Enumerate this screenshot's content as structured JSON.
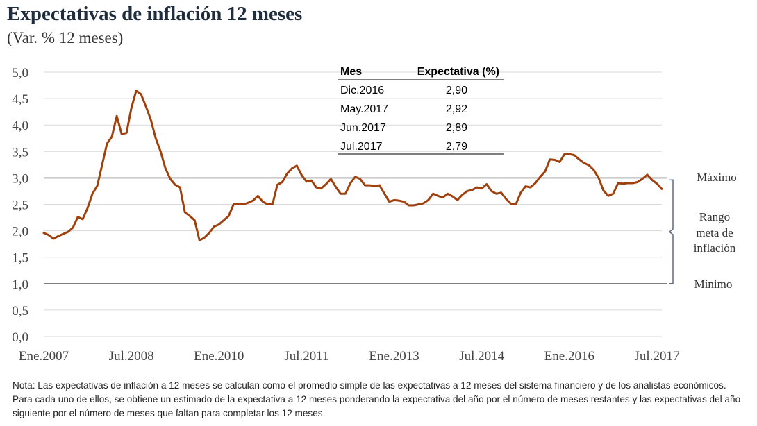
{
  "title": "Expectativas de inflación 12 meses",
  "subtitle": "(Var. % 12 meses)",
  "note": "Nota: Las expectativas de inflación a 12 meses se calculan como el promedio simple de las expectativas a 12 meses del sistema financiero y de los analistas económicos. Para cada uno de ellos, se obtiene un estimado de la expectativa a 12 meses ponderando la expectativa del año por el número de meses restantes y las expectativas del año siguiente por el número de meses que faltan para completar los 12 meses.",
  "colors": {
    "series": "#a0410d",
    "reference": "#7f7f7f",
    "grid": "#d9d9d9"
  },
  "table": {
    "headers": [
      "Mes",
      "Expectativa (%)"
    ],
    "rows": [
      [
        "Dic.2016",
        "2,90"
      ],
      [
        "May.2017",
        "2,92"
      ],
      [
        "Jun.2017",
        "2,89"
      ],
      [
        "Jul.2017",
        "2,79"
      ]
    ]
  },
  "target_range": {
    "max_label": "Máximo",
    "range_label": [
      "Rango",
      "meta de",
      "inflación"
    ],
    "min_label": "Mínimo",
    "max": 3.0,
    "min": 1.0
  },
  "chart_data": {
    "type": "line",
    "title": "Expectativas de inflación 12 meses",
    "ylabel": "",
    "xlabel": "",
    "ylim": [
      0,
      5
    ],
    "yticks": [
      0,
      0.5,
      1,
      1.5,
      2,
      2.5,
      3,
      3.5,
      4,
      4.5,
      5
    ],
    "ytick_labels": [
      "0,0",
      "0,5",
      "1,0",
      "1,5",
      "2,0",
      "2,5",
      "3,0",
      "3,5",
      "4,0",
      "4,5",
      "5,0"
    ],
    "xtick_labels": [
      "Ene.2007",
      "Jul.2008",
      "Ene.2010",
      "Jul.2011",
      "Ene.2013",
      "Jul.2014",
      "Ene.2016",
      "Jul.2017"
    ],
    "x_start": "Ene.2007",
    "x_end": "Jul.2017",
    "grid": true,
    "series": [
      {
        "values": [
          1.96,
          1.92,
          1.85,
          1.9,
          1.94,
          1.98,
          2.06,
          2.26,
          2.22,
          2.43,
          2.7,
          2.85,
          3.25,
          3.65,
          3.78,
          4.17,
          3.83,
          3.85,
          4.32,
          4.65,
          4.58,
          4.35,
          4.1,
          3.75,
          3.5,
          3.18,
          2.98,
          2.87,
          2.82,
          2.35,
          2.28,
          2.2,
          1.82,
          1.87,
          1.96,
          2.08,
          2.12,
          2.2,
          2.28,
          2.5,
          2.5,
          2.5,
          2.53,
          2.57,
          2.66,
          2.55,
          2.5,
          2.5,
          2.87,
          2.92,
          3.08,
          3.18,
          3.23,
          3.05,
          2.93,
          2.95,
          2.82,
          2.8,
          2.88,
          2.98,
          2.83,
          2.7,
          2.7,
          2.9,
          3.02,
          2.98,
          2.86,
          2.86,
          2.84,
          2.86,
          2.7,
          2.55,
          2.58,
          2.57,
          2.55,
          2.48,
          2.48,
          2.5,
          2.52,
          2.58,
          2.7,
          2.66,
          2.63,
          2.7,
          2.65,
          2.58,
          2.68,
          2.75,
          2.77,
          2.82,
          2.8,
          2.88,
          2.75,
          2.7,
          2.72,
          2.6,
          2.51,
          2.5,
          2.72,
          2.84,
          2.82,
          2.9,
          3.02,
          3.12,
          3.35,
          3.34,
          3.3,
          3.45,
          3.45,
          3.43,
          3.35,
          3.28,
          3.24,
          3.15,
          3.0,
          2.76,
          2.66,
          2.7,
          2.9,
          2.89,
          2.9,
          2.9,
          2.92,
          2.98,
          3.06,
          2.96,
          2.89,
          2.79
        ]
      }
    ]
  }
}
